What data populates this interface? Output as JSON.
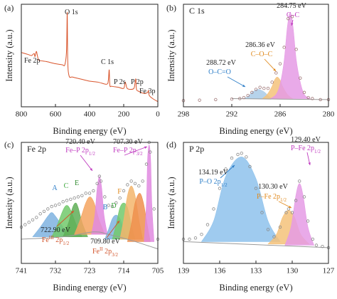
{
  "chart_data": [
    {
      "type": "line",
      "panel_label": "(a)",
      "xlabel": "Binding energy (eV)",
      "ylabel": "Intensity (a.u.)",
      "xlim": [
        800,
        0
      ],
      "ylim": [
        0,
        100
      ],
      "xticks": [
        800,
        600,
        400,
        200,
        0
      ],
      "series": [
        {
          "style": "line",
          "color": "#d9542b",
          "x": [
            800,
            780,
            760,
            740,
            725,
            720,
            712,
            706,
            700,
            690,
            650,
            600,
            560,
            545,
            535,
            531,
            528,
            520,
            500,
            450,
            400,
            350,
            300,
            290,
            285,
            281,
            270,
            230,
            200,
            192,
            187,
            180,
            160,
            140,
            133,
            129,
            125,
            110,
            80,
            60,
            55,
            50,
            30,
            0
          ],
          "values": [
            53,
            52,
            51,
            50,
            52,
            49,
            54,
            50,
            46,
            45,
            44,
            42,
            41,
            41,
            55,
            92,
            45,
            30,
            29,
            27,
            25,
            24,
            22,
            26,
            36,
            21,
            20,
            19,
            18,
            24,
            22,
            18,
            17,
            18,
            24,
            27,
            17,
            15,
            13,
            14,
            16,
            11,
            8,
            5
          ]
        }
      ],
      "annotations": [
        {
          "text": "Fe 2p",
          "color": "#222"
        },
        {
          "text": "O 1s",
          "color": "#222"
        },
        {
          "text": "C 1s",
          "color": "#222"
        },
        {
          "text": "P 2s",
          "color": "#222"
        },
        {
          "text": "P 2p",
          "color": "#222"
        },
        {
          "text": "Fe 3p",
          "color": "#222"
        }
      ]
    },
    {
      "type": "line",
      "panel_label": "(b)",
      "title": "C 1s",
      "xlabel": "Binding energy (eV)",
      "ylabel": "Intensity (a.u.)",
      "xlim": [
        298,
        280
      ],
      "ylim": [
        0,
        100
      ],
      "xticks": [
        298,
        292,
        286,
        280
      ],
      "series": [
        {
          "style": "fill",
          "color": "#a9cbe8",
          "x": [
            290.5,
            290,
            289.5,
            289.1,
            288.72,
            288.3,
            287.9,
            287.4,
            287
          ],
          "values": [
            8,
            10,
            14,
            16,
            17,
            16,
            14,
            10,
            8
          ]
        },
        {
          "style": "fill",
          "color": "#f5c27a",
          "x": [
            288.2,
            287.6,
            287,
            286.7,
            286.36,
            286,
            285.7,
            285.1,
            284.5
          ],
          "values": [
            8,
            12,
            20,
            26,
            29,
            26,
            20,
            12,
            8
          ]
        },
        {
          "style": "fill",
          "color": "#e59be5",
          "x": [
            287.2,
            286.5,
            286,
            285.5,
            285.1,
            284.75,
            284.4,
            284,
            283.5,
            283,
            282.3
          ],
          "values": [
            8,
            12,
            22,
            45,
            78,
            92,
            78,
            46,
            24,
            12,
            8
          ]
        },
        {
          "style": "line",
          "color": "#9a9a9a",
          "x": [
            292,
            280
          ],
          "values": [
            8,
            7
          ]
        },
        {
          "style": "markers",
          "color": "#a07878",
          "x": [
            298,
            296,
            294,
            292,
            291,
            290.5,
            290,
            289.5,
            289,
            288.5,
            288,
            287.5,
            287,
            286.5,
            286,
            285.5,
            285,
            284.5,
            284,
            283.5,
            283,
            282.5,
            282,
            281,
            280
          ],
          "values": [
            6,
            6.5,
            7,
            7.5,
            8,
            9,
            11,
            14,
            17,
            19,
            18,
            18,
            24,
            33,
            42,
            58,
            86,
            88,
            56,
            28,
            14,
            9,
            8,
            7,
            7
          ]
        }
      ],
      "annotations": [
        {
          "text": "284.75 eV",
          "color": "#222"
        },
        {
          "text": "C–C",
          "color": "#c03cc0"
        },
        {
          "text": "286.36 eV",
          "color": "#222"
        },
        {
          "text": "C–O–C",
          "color": "#e08a1e"
        },
        {
          "text": "288.72 eV",
          "color": "#222"
        },
        {
          "text": "O–C=O",
          "color": "#2f7fc8"
        }
      ]
    },
    {
      "type": "line",
      "panel_label": "(c)",
      "title": "Fe 2p",
      "xlabel": "Binding energy (eV)",
      "ylabel": "Intensity (a.u.)",
      "xlim": [
        741,
        705
      ],
      "ylim": [
        0,
        100
      ],
      "xticks": [
        741,
        732,
        723,
        714,
        705
      ],
      "series": [
        {
          "style": "fill",
          "color": "#7fb3e0",
          "x": [
            738,
            736,
            734,
            733,
            732,
            730,
            728
          ],
          "values": [
            22,
            30,
            39,
            42,
            39,
            30,
            22
          ]
        },
        {
          "style": "fill",
          "color": "#72c96b",
          "x": [
            733,
            731.5,
            730,
            729,
            728,
            726.5,
            725
          ],
          "values": [
            22,
            32,
            44,
            48,
            44,
            32,
            22
          ]
        },
        {
          "style": "fill",
          "color": "#5fae57",
          "x": [
            730,
            728.5,
            727.5,
            726.7,
            726,
            725,
            723.5
          ],
          "values": [
            22,
            34,
            46,
            50,
            46,
            34,
            22
          ]
        },
        {
          "style": "fill",
          "color": "#f4a460",
          "x": [
            727,
            725.5,
            724,
            722.9,
            721.8,
            720.5,
            719
          ],
          "values": [
            24,
            36,
            50,
            55,
            50,
            36,
            24
          ]
        },
        {
          "style": "fill",
          "color": "#e08ae0",
          "x": [
            722.5,
            721.6,
            721,
            720.4,
            719.8,
            719.2,
            718.3
          ],
          "values": [
            24,
            40,
            62,
            72,
            62,
            40,
            24
          ]
        },
        {
          "style": "fill",
          "color": "#7fb3e0",
          "x": [
            719,
            718,
            717,
            716,
            715,
            714,
            713
          ],
          "values": [
            20,
            28,
            37,
            40,
            37,
            28,
            20
          ]
        },
        {
          "style": "fill",
          "color": "#72c96b",
          "x": [
            717,
            716,
            715,
            714,
            713,
            712,
            711
          ],
          "values": [
            20,
            32,
            46,
            50,
            46,
            32,
            20
          ]
        },
        {
          "style": "fill",
          "color": "#f3b56c",
          "x": [
            715,
            714,
            713,
            712,
            711,
            710,
            709
          ],
          "values": [
            20,
            36,
            56,
            64,
            56,
            36,
            20
          ]
        },
        {
          "style": "fill",
          "color": "#ee8f4e",
          "x": [
            713,
            712,
            711,
            709.8,
            708.8,
            707.8,
            707
          ],
          "values": [
            18,
            32,
            50,
            58,
            50,
            32,
            18
          ]
        },
        {
          "style": "fill",
          "color": "#e08ae0",
          "x": [
            708.6,
            708,
            707.7,
            707.3,
            706.9,
            706.6,
            706
          ],
          "values": [
            18,
            50,
            86,
            98,
            86,
            50,
            18
          ]
        },
        {
          "style": "line",
          "color": "#9a9a9a",
          "x": [
            741,
            730,
            722,
            718,
            712,
            707,
            705
          ],
          "values": [
            20,
            22,
            26,
            24,
            19,
            14,
            12
          ]
        },
        {
          "style": "markers",
          "color": "#8a8a8a",
          "x": [
            741,
            740,
            739,
            738,
            737,
            736,
            735,
            734,
            733,
            732,
            731,
            730,
            729,
            728,
            727,
            726,
            725,
            724,
            723,
            722,
            721,
            720.4,
            720,
            719,
            718,
            717,
            716,
            715,
            714,
            713,
            712,
            711,
            710,
            709,
            708,
            707.3,
            707,
            706,
            705
          ],
          "values": [
            30,
            32,
            34,
            36,
            38,
            41,
            43,
            45,
            47,
            48,
            49,
            51,
            52,
            53,
            54,
            55,
            56,
            58,
            58,
            60,
            66,
            72,
            68,
            55,
            48,
            47,
            50,
            54,
            60,
            65,
            68,
            66,
            64,
            68,
            82,
            100,
            92,
            45,
            20
          ]
        }
      ],
      "annotations": [
        {
          "text": "720.40 eV",
          "color": "#222"
        },
        {
          "text": "Fe–P 2p",
          "sub": "1/2",
          "color": "#c03cc0"
        },
        {
          "text": "707.30 eV",
          "color": "#222"
        },
        {
          "text": "Fe–P 2p",
          "sub": "3/2",
          "color": "#c03cc0"
        },
        {
          "text": "A",
          "color": "#2f7fc8"
        },
        {
          "text": "C",
          "color": "#3aa63a"
        },
        {
          "text": "E",
          "color": "#2e8b2e"
        },
        {
          "text": "B",
          "color": "#2f7fc8"
        },
        {
          "text": "D",
          "color": "#3aa63a"
        },
        {
          "text": "F",
          "color": "#e08a1e"
        },
        {
          "text": "722.90 eV",
          "color": "#222"
        },
        {
          "text": "Fe",
          "sup": "III",
          "text2": " 2p",
          "sub": "1/2",
          "color": "#d2542b"
        },
        {
          "text": "709.80 eV",
          "color": "#222"
        },
        {
          "text": "Fe",
          "sup": "II",
          "text2": " 2p",
          "sub": "3/2",
          "color": "#d2542b"
        }
      ]
    },
    {
      "type": "line",
      "panel_label": "(d)",
      "title": "P 2p",
      "xlabel": "Binding energy (eV)",
      "ylabel": "Intensity (a.u.)",
      "xlim": [
        139,
        127
      ],
      "ylim": [
        0,
        100
      ],
      "xticks": [
        139,
        136,
        133,
        130,
        127
      ],
      "series": [
        {
          "style": "fill",
          "color": "#8ec2ec",
          "x": [
            137.5,
            136.5,
            135.5,
            134.19,
            133,
            132,
            131
          ],
          "values": [
            18,
            35,
            72,
            88,
            70,
            35,
            18
          ]
        },
        {
          "style": "fill",
          "color": "#f5c27a",
          "x": [
            132,
            131.3,
            130.8,
            130.3,
            129.8,
            129.3,
            128.6
          ],
          "values": [
            16,
            24,
            38,
            44,
            38,
            24,
            16
          ]
        },
        {
          "style": "fill",
          "color": "#e59be5",
          "x": [
            130.6,
            130.1,
            129.7,
            129.4,
            129.1,
            128.7,
            128.2
          ],
          "values": [
            15,
            30,
            56,
            66,
            56,
            30,
            15
          ]
        },
        {
          "style": "line",
          "color": "#9a9a9a",
          "x": [
            139,
            127
          ],
          "values": [
            18,
            13
          ]
        },
        {
          "style": "markers",
          "color": "#8a8a8a",
          "x": [
            139,
            138.5,
            138,
            137.5,
            137,
            136.5,
            136,
            135.5,
            135,
            134.5,
            134.19,
            133.8,
            133.5,
            133,
            132.5,
            132,
            131.5,
            131,
            130.5,
            130.3,
            130,
            129.7,
            129.4,
            129,
            128.7,
            128.3,
            128,
            127.5,
            127
          ],
          "values": [
            20,
            20,
            21,
            24,
            32,
            45,
            62,
            78,
            87,
            90,
            91,
            88,
            80,
            62,
            42,
            28,
            22,
            30,
            42,
            45,
            42,
            52,
            68,
            55,
            35,
            20,
            15,
            14,
            13
          ]
        }
      ],
      "annotations": [
        {
          "text": "134.19 eV",
          "color": "#222"
        },
        {
          "text": "P–O 2p",
          "sub": "1/2",
          "color": "#2f7fc8"
        },
        {
          "text": "130.30 eV",
          "color": "#222"
        },
        {
          "text": "P–Fe 2p",
          "sub": "1/2",
          "color": "#e08a1e"
        },
        {
          "text": "129.40 eV",
          "color": "#222"
        },
        {
          "text": "P–Fe 2p",
          "sub": "1/2",
          "color": "#c03cc0"
        }
      ]
    }
  ]
}
